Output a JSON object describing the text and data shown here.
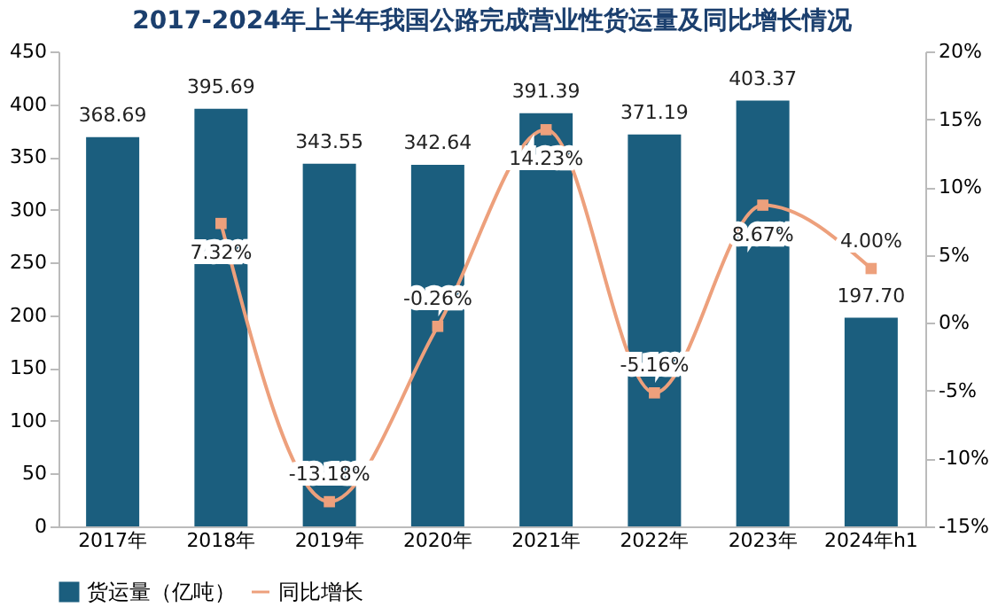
{
  "chart_data": {
    "type": "bar",
    "title": "2017-2024年上半年我国公路完成营业性货运量及同比增长情况",
    "categories": [
      "2017年",
      "2018年",
      "2019年",
      "2020年",
      "2021年",
      "2022年",
      "2023年",
      "2024年h1"
    ],
    "series": [
      {
        "name": "货运量（亿吨）",
        "color": "#1b5e7e",
        "values": [
          368.69,
          395.69,
          343.55,
          342.64,
          391.39,
          371.19,
          403.37,
          197.7
        ],
        "value_labels": [
          "368.69",
          "395.69",
          "343.55",
          "342.64",
          "391.39",
          "371.19",
          "403.37",
          "197.70"
        ]
      },
      {
        "name": "同比增长",
        "type": "line",
        "axis": "y2",
        "color": "#eda07c",
        "values": [
          null,
          7.32,
          -13.18,
          -0.26,
          14.23,
          -5.16,
          8.67,
          4.0
        ],
        "value_labels": [
          null,
          "7.32%",
          "-13.18%",
          "-0.26%",
          "14.23%",
          "-5.16%",
          "8.67%",
          "4.00%"
        ]
      }
    ],
    "ylim": [
      0,
      450
    ],
    "yticks": [
      0,
      50,
      100,
      150,
      200,
      250,
      300,
      350,
      400,
      450
    ],
    "y2lim": [
      -15,
      20
    ],
    "y2ticks": [
      {
        "value": -15,
        "label": "-15%"
      },
      {
        "value": -10,
        "label": "-10%"
      },
      {
        "value": -5,
        "label": "-5%"
      },
      {
        "value": 0,
        "label": "0%"
      },
      {
        "value": 5,
        "label": "5%"
      },
      {
        "value": 10,
        "label": "10%"
      },
      {
        "value": 15,
        "label": "15%"
      },
      {
        "value": 20,
        "label": "20%"
      }
    ],
    "legend": "bottom",
    "grid": false,
    "marker": "square"
  }
}
